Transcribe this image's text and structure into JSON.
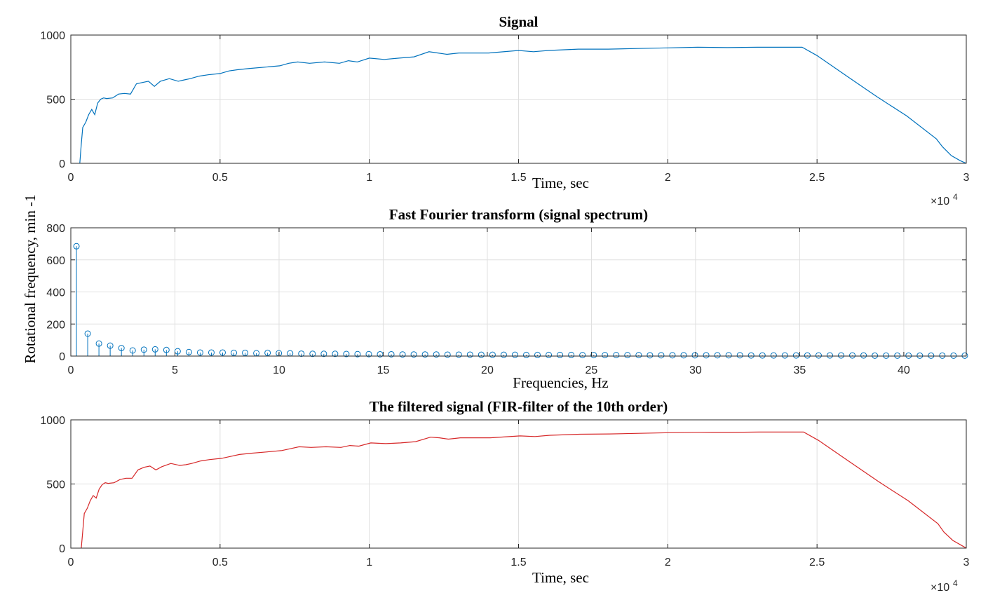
{
  "figure": {
    "ylabel": "Rotational frequency, min -1"
  },
  "chart_data": [
    {
      "type": "line",
      "title": "Signal",
      "xlabel": "Time, sec",
      "ylabel": "",
      "x_exponent_label": "×10",
      "x_exponent_power": "4",
      "xlim": [
        0,
        30000
      ],
      "ylim": [
        0,
        1000
      ],
      "xticks": [
        0,
        5000,
        10000,
        15000,
        20000,
        25000,
        30000
      ],
      "xtick_labels": [
        "0",
        "0.5",
        "1",
        "1.5",
        "2",
        "2.5",
        "3"
      ],
      "yticks": [
        0,
        500,
        1000
      ],
      "ytick_labels": [
        "0",
        "500",
        "1000"
      ],
      "grid": true,
      "color": "#0072BD",
      "series": [
        {
          "x": [
            300,
            350,
            400,
            500,
            600,
            700,
            800,
            900,
            1000,
            1100,
            1200,
            1400,
            1600,
            1800,
            2000,
            2200,
            2400,
            2600,
            2800,
            3000,
            3300,
            3600,
            3800,
            4000,
            4300,
            4600,
            5000,
            5300,
            5600,
            6000,
            6500,
            7000,
            7300,
            7600,
            8000,
            8500,
            9000,
            9300,
            9600,
            10000,
            10500,
            11000,
            11500,
            12000,
            12300,
            12600,
            13000,
            14000,
            15000,
            15500,
            16000,
            17000,
            18000,
            19000,
            20000,
            21000,
            22000,
            23000,
            24000,
            24500,
            25000,
            26000,
            27000,
            28000,
            29000,
            29200,
            29500,
            29800,
            30000
          ],
          "y": [
            0,
            150,
            280,
            320,
            380,
            420,
            380,
            470,
            500,
            510,
            505,
            510,
            540,
            545,
            540,
            620,
            630,
            640,
            600,
            640,
            660,
            640,
            650,
            660,
            680,
            690,
            700,
            720,
            730,
            740,
            750,
            760,
            780,
            790,
            780,
            790,
            780,
            800,
            790,
            820,
            810,
            820,
            830,
            870,
            860,
            850,
            860,
            860,
            880,
            870,
            880,
            890,
            890,
            895,
            900,
            905,
            902,
            905,
            905,
            905,
            840,
            680,
            520,
            370,
            190,
            130,
            60,
            20,
            0
          ]
        }
      ]
    },
    {
      "type": "stem",
      "title": "Fast Fourier transform (signal spectrum)",
      "xlabel": "Frequencies, Hz",
      "ylabel": "",
      "xlim": [
        0,
        43
      ],
      "ylim": [
        0,
        800
      ],
      "xticks": [
        0,
        5,
        10,
        15,
        20,
        25,
        30,
        35,
        40
      ],
      "xtick_labels": [
        "0",
        "5",
        "10",
        "15",
        "20",
        "25",
        "30",
        "35",
        "40"
      ],
      "yticks": [
        0,
        200,
        400,
        600,
        800
      ],
      "ytick_labels": [
        "0",
        "200",
        "400",
        "600",
        "800"
      ],
      "grid": true,
      "color": "#0072BD",
      "series": [
        {
          "x": [
            0.27,
            0.81,
            1.35,
            1.89,
            2.43,
            2.97,
            3.51,
            4.05,
            4.59,
            5.13,
            5.67,
            6.21,
            6.75,
            7.29,
            7.83,
            8.37,
            8.91,
            9.45,
            9.99,
            10.53,
            11.07,
            11.61,
            12.15,
            12.69,
            13.23,
            13.77,
            14.31,
            14.85,
            15.39,
            15.93,
            16.47,
            17.01,
            17.55,
            18.09,
            18.63,
            19.17,
            19.71,
            20.25,
            20.79,
            21.33,
            21.87,
            22.41,
            22.95,
            23.49,
            24.03,
            24.57,
            25.11,
            25.65,
            26.19,
            26.73,
            27.27,
            27.81,
            28.35,
            28.89,
            29.43,
            29.97,
            30.51,
            31.05,
            31.59,
            32.13,
            32.67,
            33.21,
            33.75,
            34.29,
            34.83,
            35.37,
            35.91,
            36.45,
            36.99,
            37.53,
            38.07,
            38.61,
            39.15,
            39.69,
            40.23,
            40.77,
            41.31,
            41.85,
            42.39,
            42.93
          ],
          "y": [
            685,
            140,
            78,
            65,
            50,
            35,
            40,
            42,
            38,
            30,
            25,
            22,
            22,
            22,
            20,
            20,
            18,
            20,
            18,
            17,
            15,
            14,
            14,
            14,
            13,
            12,
            12,
            11,
            11,
            10,
            10,
            10,
            10,
            9,
            9,
            9,
            8,
            8,
            8,
            8,
            7,
            7,
            7,
            7,
            7,
            6,
            6,
            6,
            6,
            6,
            6,
            5,
            5,
            5,
            5,
            5,
            5,
            5,
            5,
            5,
            4,
            4,
            4,
            4,
            4,
            4,
            4,
            4,
            4,
            4,
            4,
            3,
            3,
            3,
            3,
            3,
            3,
            3,
            3,
            3
          ]
        }
      ]
    },
    {
      "type": "line",
      "title": "The filtered signal (FIR-filter of the 10th order)",
      "xlabel": "Time, sec",
      "ylabel": "",
      "x_exponent_label": "×10",
      "x_exponent_power": "4",
      "xlim": [
        0,
        30000
      ],
      "ylim": [
        0,
        1000
      ],
      "xticks": [
        0,
        5000,
        10000,
        15000,
        20000,
        25000,
        30000
      ],
      "xtick_labels": [
        "0",
        "0.5",
        "1",
        "1.5",
        "2",
        "2.5",
        "3"
      ],
      "yticks": [
        0,
        500,
        1000
      ],
      "ytick_labels": [
        "0",
        "500",
        "1000"
      ],
      "grid": true,
      "color": "#D62728",
      "series": [
        {
          "x": [
            350,
            400,
            450,
            550,
            650,
            750,
            850,
            950,
            1050,
            1150,
            1250,
            1450,
            1650,
            1850,
            2050,
            2250,
            2450,
            2650,
            2850,
            3050,
            3350,
            3650,
            3850,
            4050,
            4350,
            4650,
            5050,
            5350,
            5650,
            6050,
            6550,
            7050,
            7350,
            7650,
            8050,
            8550,
            9050,
            9350,
            9650,
            10050,
            10550,
            11050,
            11550,
            12050,
            12350,
            12650,
            13050,
            14050,
            15050,
            15550,
            16050,
            17050,
            18050,
            19050,
            20050,
            21050,
            22050,
            23050,
            24050,
            24550,
            25050,
            26050,
            27050,
            28050,
            29050,
            29250,
            29550,
            29850,
            30000
          ],
          "y": [
            0,
            130,
            270,
            310,
            370,
            410,
            390,
            460,
            495,
            510,
            505,
            510,
            535,
            545,
            545,
            610,
            630,
            640,
            610,
            635,
            660,
            645,
            650,
            660,
            680,
            690,
            700,
            715,
            730,
            740,
            750,
            760,
            775,
            790,
            785,
            790,
            785,
            800,
            795,
            820,
            815,
            820,
            830,
            865,
            860,
            850,
            860,
            860,
            875,
            870,
            880,
            888,
            890,
            895,
            900,
            903,
            902,
            905,
            905,
            905,
            840,
            680,
            520,
            370,
            190,
            125,
            60,
            20,
            0
          ]
        }
      ]
    }
  ]
}
